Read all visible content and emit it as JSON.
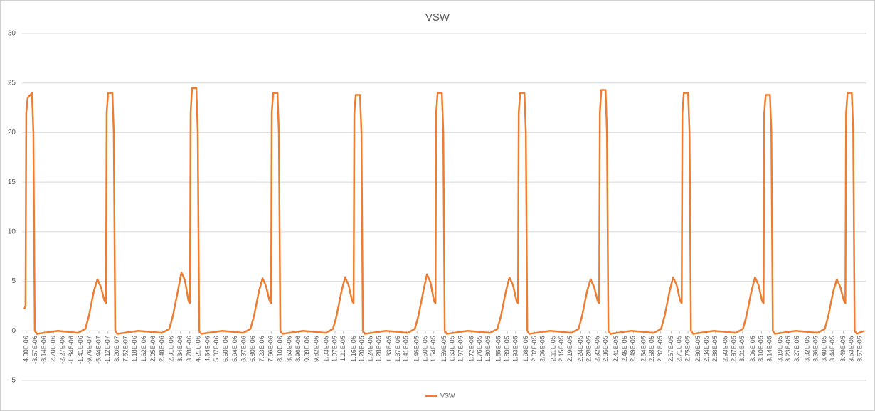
{
  "chart_data": {
    "type": "line",
    "title": "VSW",
    "x": [
      -4.1e-06,
      -4.034e-06,
      -4e-06,
      -3.932e-06,
      -3.729e-06,
      -3.661e-06,
      -3.593e-06,
      -3.492e-06,
      -2.5e-06,
      -1.527e-06,
      -1.188e-06,
      -1.019e-06,
      -7.82e-07,
      -6.12e-07,
      -4.43e-07,
      -2.74e-07,
      -2.06e-07,
      -1.72e-07,
      -1.04e-07,
      9.9e-08,
      1.67e-07,
      2.35e-07,
      3.36e-07,
      1.328e-06,
      2.471e-06,
      2.81e-06,
      2.979e-06,
      3.216e-06,
      3.386e-06,
      3.555e-06,
      3.724e-06,
      3.792e-06,
      3.826e-06,
      3.894e-06,
      4.097e-06,
      4.165e-06,
      4.233e-06,
      4.334e-06,
      5.326e-06,
      6.334e-06,
      6.673e-06,
      6.842e-06,
      7.079e-06,
      7.249e-06,
      7.418e-06,
      7.587e-06,
      7.655e-06,
      7.689e-06,
      7.757e-06,
      7.96e-06,
      8.028e-06,
      8.096e-06,
      8.197e-06,
      9.189e-06,
      1.0264e-05,
      1.0603e-05,
      1.0772e-05,
      1.1009e-05,
      1.1179e-05,
      1.1348e-05,
      1.1517e-05,
      1.1585e-05,
      1.1619e-05,
      1.1687e-05,
      1.189e-05,
      1.1958e-05,
      1.2026e-05,
      1.2127e-05,
      1.3119e-05,
      1.416e-05,
      1.4499e-05,
      1.4668e-05,
      1.4905e-05,
      1.5075e-05,
      1.5244e-05,
      1.5413e-05,
      1.5481e-05,
      1.5515e-05,
      1.5583e-05,
      1.5786e-05,
      1.5854e-05,
      1.5922e-05,
      1.6023e-05,
      1.7015e-05,
      1.809e-05,
      1.8429e-05,
      1.8598e-05,
      1.8835e-05,
      1.9005e-05,
      1.9174e-05,
      1.9343e-05,
      1.9411e-05,
      1.9445e-05,
      1.9513e-05,
      1.9716e-05,
      1.9784e-05,
      1.9852e-05,
      1.9953e-05,
      2.0945e-05,
      2.1952e-05,
      2.2291e-05,
      2.246e-05,
      2.2697e-05,
      2.2867e-05,
      2.3036e-05,
      2.3205e-05,
      2.3273e-05,
      2.3307e-05,
      2.3375e-05,
      2.3578e-05,
      2.3646e-05,
      2.3714e-05,
      2.3815e-05,
      2.4807e-05,
      2.5882e-05,
      2.6221e-05,
      2.639e-05,
      2.6627e-05,
      2.6797e-05,
      2.6966e-05,
      2.7135e-05,
      2.7203e-05,
      2.7237e-05,
      2.7305e-05,
      2.7508e-05,
      2.7576e-05,
      2.7644e-05,
      2.7745e-05,
      2.8737e-05,
      2.9779e-05,
      3.0118e-05,
      3.0287e-05,
      3.0524e-05,
      3.0694e-05,
      3.0863e-05,
      3.1032e-05,
      3.11e-05,
      3.1134e-05,
      3.1202e-05,
      3.1405e-05,
      3.1473e-05,
      3.1541e-05,
      3.1642e-05,
      3.2634e-05,
      3.3675e-05,
      3.4014e-05,
      3.4183e-05,
      3.442e-05,
      3.459e-05,
      3.4759e-05,
      3.4928e-05,
      3.4996e-05,
      3.503e-05,
      3.5098e-05,
      3.5301e-05,
      3.5369e-05,
      3.5437e-05,
      3.5538e-05,
      3.59e-05
    ],
    "series": [
      {
        "name": "VSW",
        "color": "#ed7d31",
        "values": [
          2.2,
          2.5,
          22,
          23.5,
          24,
          20,
          0,
          -0.3,
          0,
          -0.2,
          0.2,
          1.5,
          4,
          5.2,
          4.4,
          3,
          2.8,
          22,
          24,
          24,
          20,
          0,
          -0.3,
          0,
          -0.2,
          0.2,
          1.5,
          4,
          5.9,
          5.1,
          3,
          2.8,
          22,
          24.5,
          24.5,
          20,
          0,
          -0.3,
          0,
          -0.2,
          0.2,
          1.5,
          4,
          5.3,
          4.5,
          3,
          2.8,
          22,
          24,
          24,
          20,
          0,
          -0.3,
          0,
          -0.2,
          0.2,
          1.5,
          4,
          5.4,
          4.6,
          3,
          2.8,
          22,
          23.8,
          23.8,
          20,
          0,
          -0.3,
          0,
          -0.2,
          0.2,
          1.5,
          4,
          5.7,
          4.9,
          3,
          2.8,
          22,
          24,
          24,
          20,
          0,
          -0.3,
          0,
          -0.2,
          0.2,
          1.5,
          4,
          5.4,
          4.6,
          3,
          2.8,
          22,
          24,
          24,
          20,
          0,
          -0.3,
          0,
          -0.2,
          0.2,
          1.5,
          4,
          5.2,
          4.4,
          3,
          2.8,
          22,
          24.3,
          24.3,
          20,
          0,
          -0.3,
          0,
          -0.2,
          0.2,
          1.5,
          4,
          5.4,
          4.6,
          3,
          2.8,
          22,
          24,
          24,
          20,
          0,
          -0.3,
          0,
          -0.2,
          0.2,
          1.5,
          4,
          5.4,
          4.6,
          3,
          2.8,
          22,
          23.8,
          23.8,
          20,
          0,
          -0.3,
          0,
          -0.2,
          0.2,
          1.5,
          4,
          5.2,
          4.4,
          3,
          2.8,
          22,
          24,
          24,
          20,
          0,
          -0.3,
          0
        ]
      }
    ],
    "xlim": [
      -4.2e-06,
      3.6e-05
    ],
    "xticks": [
      {
        "value": -4e-06,
        "label": "-4.00E-06"
      },
      {
        "value": -3.57e-06,
        "label": "-3.57E-06"
      },
      {
        "value": -3.14e-06,
        "label": "-3.14E-06"
      },
      {
        "value": -2.7e-06,
        "label": "-2.70E-06"
      },
      {
        "value": -2.27e-06,
        "label": "-2.27E-06"
      },
      {
        "value": -1.84e-06,
        "label": "-1.84E-06"
      },
      {
        "value": -1.41e-06,
        "label": "-1.41E-06"
      },
      {
        "value": -9.76e-07,
        "label": "-9.76E-07"
      },
      {
        "value": -5.44e-07,
        "label": "-5.44E-07"
      },
      {
        "value": -1.12e-07,
        "label": "-1.12E-07"
      },
      {
        "value": 3.2e-07,
        "label": "3.20E-07"
      },
      {
        "value": 7.52e-07,
        "label": "7.52E-07"
      },
      {
        "value": 1.18e-06,
        "label": "1.18E-06"
      },
      {
        "value": 1.62e-06,
        "label": "1.62E-06"
      },
      {
        "value": 2.05e-06,
        "label": "2.05E-06"
      },
      {
        "value": 2.48e-06,
        "label": "2.48E-06"
      },
      {
        "value": 2.91e-06,
        "label": "2.91E-06"
      },
      {
        "value": 3.34e-06,
        "label": "3.34E-06"
      },
      {
        "value": 3.78e-06,
        "label": "3.78E-06"
      },
      {
        "value": 4.21e-06,
        "label": "4.21E-06"
      },
      {
        "value": 4.64e-06,
        "label": "4.64E-06"
      },
      {
        "value": 5.07e-06,
        "label": "5.07E-06"
      },
      {
        "value": 5.5e-06,
        "label": "5.50E-06"
      },
      {
        "value": 5.94e-06,
        "label": "5.94E-06"
      },
      {
        "value": 6.37e-06,
        "label": "6.37E-06"
      },
      {
        "value": 6.8e-06,
        "label": "6.80E-06"
      },
      {
        "value": 7.23e-06,
        "label": "7.23E-06"
      },
      {
        "value": 7.66e-06,
        "label": "7.66E-06"
      },
      {
        "value": 8.1e-06,
        "label": "8.10E-06"
      },
      {
        "value": 8.53e-06,
        "label": "8.53E-06"
      },
      {
        "value": 8.96e-06,
        "label": "8.96E-06"
      },
      {
        "value": 9.39e-06,
        "label": "9.39E-06"
      },
      {
        "value": 9.82e-06,
        "label": "9.82E-06"
      },
      {
        "value": 1.03e-05,
        "label": "1.03E-05"
      },
      {
        "value": 1.07e-05,
        "label": "1.07E-05"
      },
      {
        "value": 1.11e-05,
        "label": "1.11E-05"
      },
      {
        "value": 1.16e-05,
        "label": "1.16E-05"
      },
      {
        "value": 1.2e-05,
        "label": "1.20E-05"
      },
      {
        "value": 1.24e-05,
        "label": "1.24E-05"
      },
      {
        "value": 1.28e-05,
        "label": "1.28E-05"
      },
      {
        "value": 1.33e-05,
        "label": "1.33E-05"
      },
      {
        "value": 1.37e-05,
        "label": "1.37E-05"
      },
      {
        "value": 1.41e-05,
        "label": "1.41E-05"
      },
      {
        "value": 1.46e-05,
        "label": "1.46E-05"
      },
      {
        "value": 1.5e-05,
        "label": "1.50E-05"
      },
      {
        "value": 1.54e-05,
        "label": "1.54E-05"
      },
      {
        "value": 1.59e-05,
        "label": "1.59E-05"
      },
      {
        "value": 1.63e-05,
        "label": "1.63E-05"
      },
      {
        "value": 1.67e-05,
        "label": "1.67E-05"
      },
      {
        "value": 1.72e-05,
        "label": "1.72E-05"
      },
      {
        "value": 1.76e-05,
        "label": "1.76E-05"
      },
      {
        "value": 1.8e-05,
        "label": "1.80E-05"
      },
      {
        "value": 1.85e-05,
        "label": "1.85E-05"
      },
      {
        "value": 1.89e-05,
        "label": "1.89E-05"
      },
      {
        "value": 1.93e-05,
        "label": "1.93E-05"
      },
      {
        "value": 1.98e-05,
        "label": "1.98E-05"
      },
      {
        "value": 2.02e-05,
        "label": "2.02E-05"
      },
      {
        "value": 2.06e-05,
        "label": "2.06E-05"
      },
      {
        "value": 2.11e-05,
        "label": "2.11E-05"
      },
      {
        "value": 2.15e-05,
        "label": "2.15E-05"
      },
      {
        "value": 2.19e-05,
        "label": "2.19E-05"
      },
      {
        "value": 2.24e-05,
        "label": "2.24E-05"
      },
      {
        "value": 2.28e-05,
        "label": "2.28E-05"
      },
      {
        "value": 2.32e-05,
        "label": "2.32E-05"
      },
      {
        "value": 2.36e-05,
        "label": "2.36E-05"
      },
      {
        "value": 2.41e-05,
        "label": "2.41E-05"
      },
      {
        "value": 2.45e-05,
        "label": "2.45E-05"
      },
      {
        "value": 2.49e-05,
        "label": "2.49E-05"
      },
      {
        "value": 2.54e-05,
        "label": "2.54E-05"
      },
      {
        "value": 2.58e-05,
        "label": "2.58E-05"
      },
      {
        "value": 2.62e-05,
        "label": "2.62E-05"
      },
      {
        "value": 2.67e-05,
        "label": "2.67E-05"
      },
      {
        "value": 2.71e-05,
        "label": "2.71E-05"
      },
      {
        "value": 2.75e-05,
        "label": "2.75E-05"
      },
      {
        "value": 2.8e-05,
        "label": "2.80E-05"
      },
      {
        "value": 2.84e-05,
        "label": "2.84E-05"
      },
      {
        "value": 2.88e-05,
        "label": "2.88E-05"
      },
      {
        "value": 2.93e-05,
        "label": "2.93E-05"
      },
      {
        "value": 2.97e-05,
        "label": "2.97E-05"
      },
      {
        "value": 3.01e-05,
        "label": "3.01E-05"
      },
      {
        "value": 3.06e-05,
        "label": "3.06E-05"
      },
      {
        "value": 3.1e-05,
        "label": "3.10E-05"
      },
      {
        "value": 3.14e-05,
        "label": "3.14E-05"
      },
      {
        "value": 3.19e-05,
        "label": "3.19E-05"
      },
      {
        "value": 3.23e-05,
        "label": "3.23E-05"
      },
      {
        "value": 3.27e-05,
        "label": "3.27E-05"
      },
      {
        "value": 3.32e-05,
        "label": "3.32E-05"
      },
      {
        "value": 3.36e-05,
        "label": "3.36E-05"
      },
      {
        "value": 3.4e-05,
        "label": "3.40E-05"
      },
      {
        "value": 3.44e-05,
        "label": "3.44E-05"
      },
      {
        "value": 3.49e-05,
        "label": "3.49E-05"
      },
      {
        "value": 3.53e-05,
        "label": "3.53E-05"
      },
      {
        "value": 3.57e-05,
        "label": "3.57E-05"
      }
    ],
    "ylim": [
      -5,
      30
    ],
    "yticks": [
      -5,
      0,
      5,
      10,
      15,
      20,
      25,
      30
    ],
    "grid": true,
    "legend": "bottom"
  }
}
